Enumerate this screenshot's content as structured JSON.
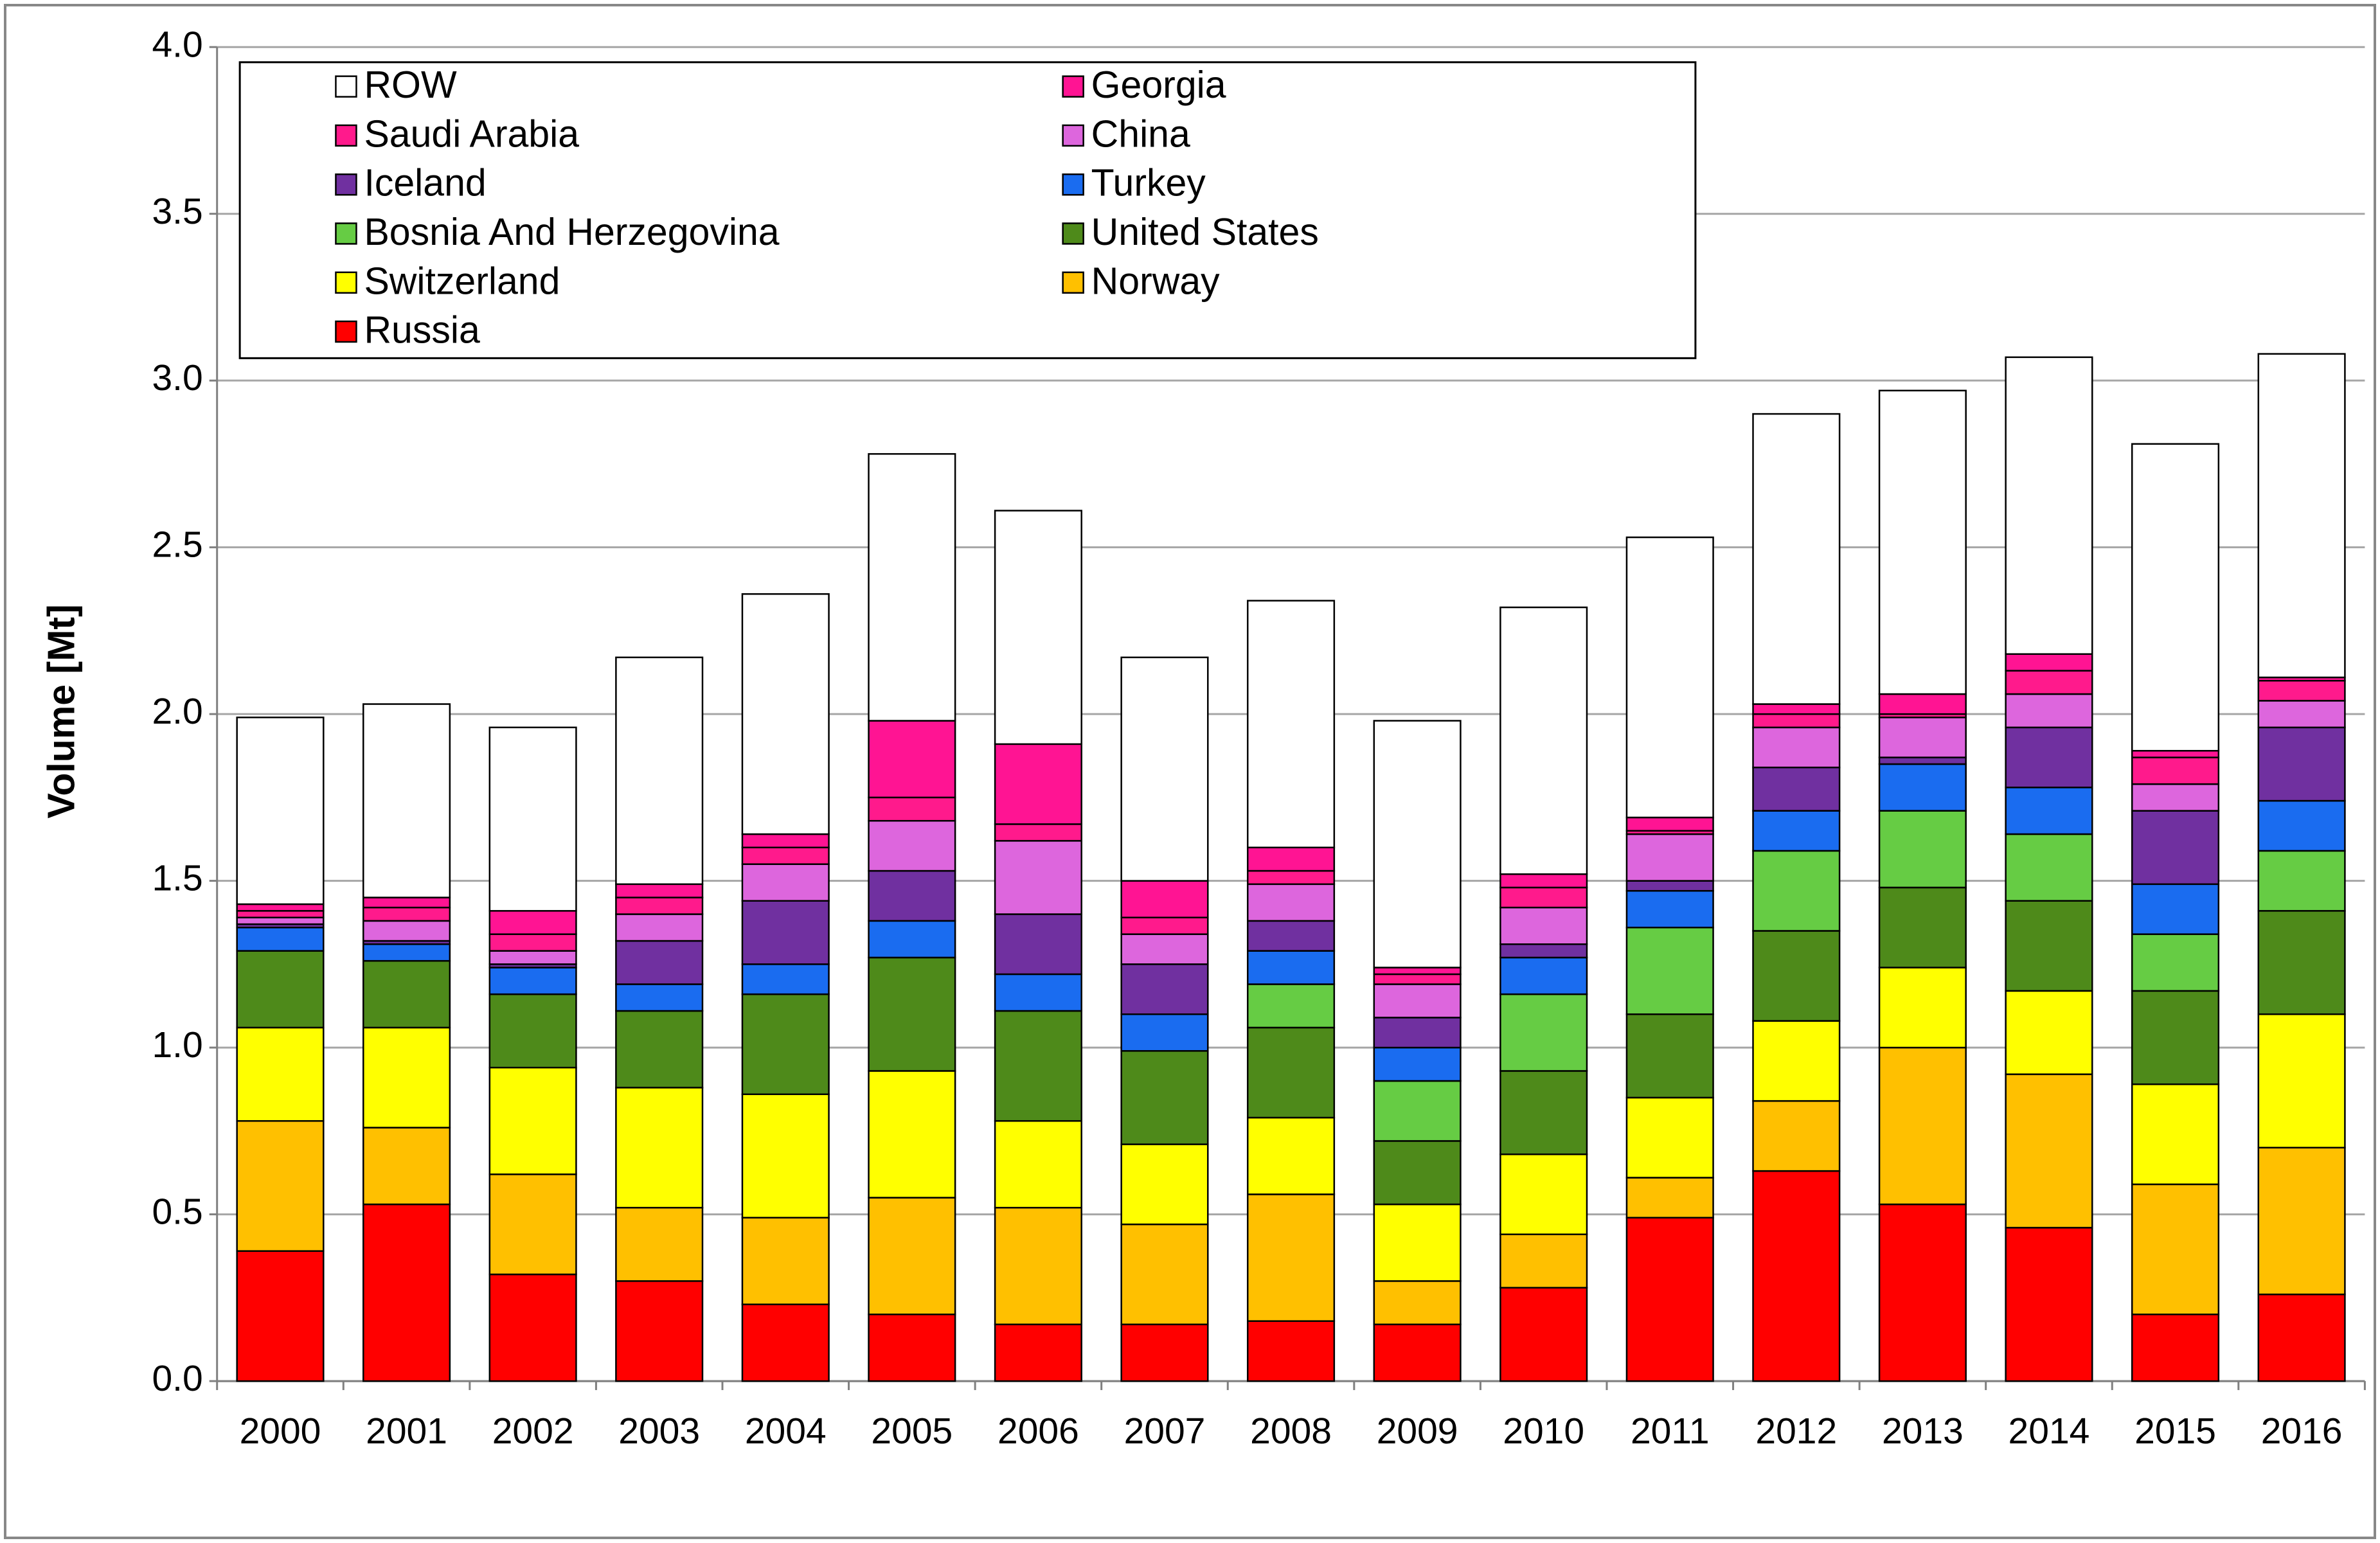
{
  "chart_data": {
    "type": "stacked_bar",
    "y_label": "Volume [Mt]",
    "categories": [
      "2000",
      "2001",
      "2002",
      "2003",
      "2004",
      "2005",
      "2006",
      "2007",
      "2008",
      "2009",
      "2010",
      "2011",
      "2012",
      "2013",
      "2014",
      "2015",
      "2016"
    ],
    "ylim": [
      0,
      4
    ],
    "yticks": [
      {
        "value": 0,
        "label": "0.0"
      },
      0.5,
      {
        "value": 1,
        "label": "1.0"
      },
      1.5,
      {
        "value": 2,
        "label": "2.0"
      },
      2.5,
      {
        "value": 3,
        "label": "3.0"
      },
      3.5,
      {
        "value": 4,
        "label": "4.0"
      }
    ],
    "grid": true,
    "legend": "top-left",
    "series": [
      {
        "name": "Russia",
        "color": "#ff0000",
        "values": [
          0.39,
          0.53,
          0.32,
          0.3,
          0.23,
          0.2,
          0.17,
          0.17,
          0.18,
          0.17,
          0.28,
          0.49,
          0.63,
          0.53,
          0.46,
          0.2,
          0.26
        ]
      },
      {
        "name": "Norway",
        "color": "#ffc000",
        "values": [
          0.39,
          0.23,
          0.3,
          0.22,
          0.26,
          0.35,
          0.35,
          0.3,
          0.38,
          0.13,
          0.16,
          0.12,
          0.21,
          0.47,
          0.46,
          0.39,
          0.44
        ]
      },
      {
        "name": "Switzerland",
        "color": "#ffff00",
        "values": [
          0.28,
          0.3,
          0.32,
          0.36,
          0.37,
          0.38,
          0.26,
          0.24,
          0.23,
          0.23,
          0.24,
          0.24,
          0.24,
          0.24,
          0.25,
          0.3,
          0.4
        ]
      },
      {
        "name": "United States",
        "color": "#4e8a1a",
        "values": [
          0.23,
          0.2,
          0.22,
          0.23,
          0.3,
          0.34,
          0.33,
          0.28,
          0.27,
          0.19,
          0.25,
          0.25,
          0.27,
          0.24,
          0.27,
          0.28,
          0.31
        ]
      },
      {
        "name": "Bosnia And Herzegovina",
        "color": "#66cc44",
        "values": [
          0,
          0,
          0,
          0,
          0,
          0,
          0,
          0,
          0.13,
          0.18,
          0.23,
          0.26,
          0.24,
          0.23,
          0.2,
          0.17,
          0.18
        ]
      },
      {
        "name": "Turkey",
        "color": "#1a6cf0",
        "values": [
          0.07,
          0.05,
          0.08,
          0.08,
          0.09,
          0.11,
          0.11,
          0.11,
          0.1,
          0.1,
          0.11,
          0.11,
          0.12,
          0.14,
          0.14,
          0.15,
          0.15
        ]
      },
      {
        "name": "Iceland",
        "color": "#7030a0",
        "values": [
          0.01,
          0.01,
          0.01,
          0.13,
          0.19,
          0.15,
          0.18,
          0.15,
          0.09,
          0.09,
          0.04,
          0.03,
          0.13,
          0.02,
          0.18,
          0.22,
          0.22
        ]
      },
      {
        "name": "China",
        "color": "#dd66dd",
        "values": [
          0.02,
          0.06,
          0.04,
          0.08,
          0.11,
          0.15,
          0.22,
          0.09,
          0.11,
          0.1,
          0.11,
          0.14,
          0.12,
          0.12,
          0.1,
          0.08,
          0.08
        ]
      },
      {
        "name": "Saudi Arabia",
        "color": "#ff1a8c",
        "values": [
          0.02,
          0.04,
          0.05,
          0.05,
          0.05,
          0.07,
          0.05,
          0.05,
          0.04,
          0.03,
          0.06,
          0.01,
          0.04,
          0.01,
          0.07,
          0.08,
          0.06
        ]
      },
      {
        "name": "Georgia",
        "color": "#ff1493",
        "values": [
          0.02,
          0.03,
          0.07,
          0.04,
          0.04,
          0.23,
          0.24,
          0.11,
          0.07,
          0.02,
          0.04,
          0.04,
          0.03,
          0.06,
          0.05,
          0.02,
          0.01
        ]
      },
      {
        "name": "ROW",
        "color": "#ffffff",
        "values": [
          0.56,
          0.58,
          0.55,
          0.68,
          0.72,
          0.8,
          0.7,
          0.67,
          0.74,
          0.74,
          0.8,
          0.84,
          0.87,
          0.91,
          0.89,
          0.92,
          0.97
        ]
      }
    ]
  }
}
